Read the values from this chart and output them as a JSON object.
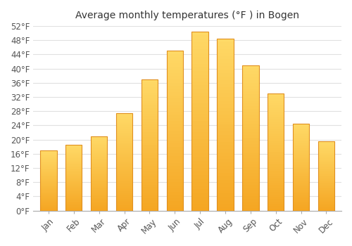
{
  "title": "Average monthly temperatures (°F ) in Bogen",
  "months": [
    "Jan",
    "Feb",
    "Mar",
    "Apr",
    "May",
    "Jun",
    "Jul",
    "Aug",
    "Sep",
    "Oct",
    "Nov",
    "Dec"
  ],
  "values": [
    17,
    18.5,
    21,
    27.5,
    37,
    45,
    50.5,
    48.5,
    41,
    33,
    24.5,
    19.5
  ],
  "bar_color_bottom": "#F5A623",
  "bar_color_top": "#FFD966",
  "bar_edge_color": "#E09020",
  "ylim": [
    0,
    52
  ],
  "yticks": [
    0,
    4,
    8,
    12,
    16,
    20,
    24,
    28,
    32,
    36,
    40,
    44,
    48,
    52
  ],
  "ytick_labels": [
    "0°F",
    "4°F",
    "8°F",
    "12°F",
    "16°F",
    "20°F",
    "24°F",
    "28°F",
    "32°F",
    "36°F",
    "40°F",
    "44°F",
    "48°F",
    "52°F"
  ],
  "background_color": "#ffffff",
  "grid_color": "#e0e0e0",
  "title_fontsize": 10,
  "tick_fontsize": 8.5,
  "bar_width": 0.65,
  "gradient_steps": 50
}
